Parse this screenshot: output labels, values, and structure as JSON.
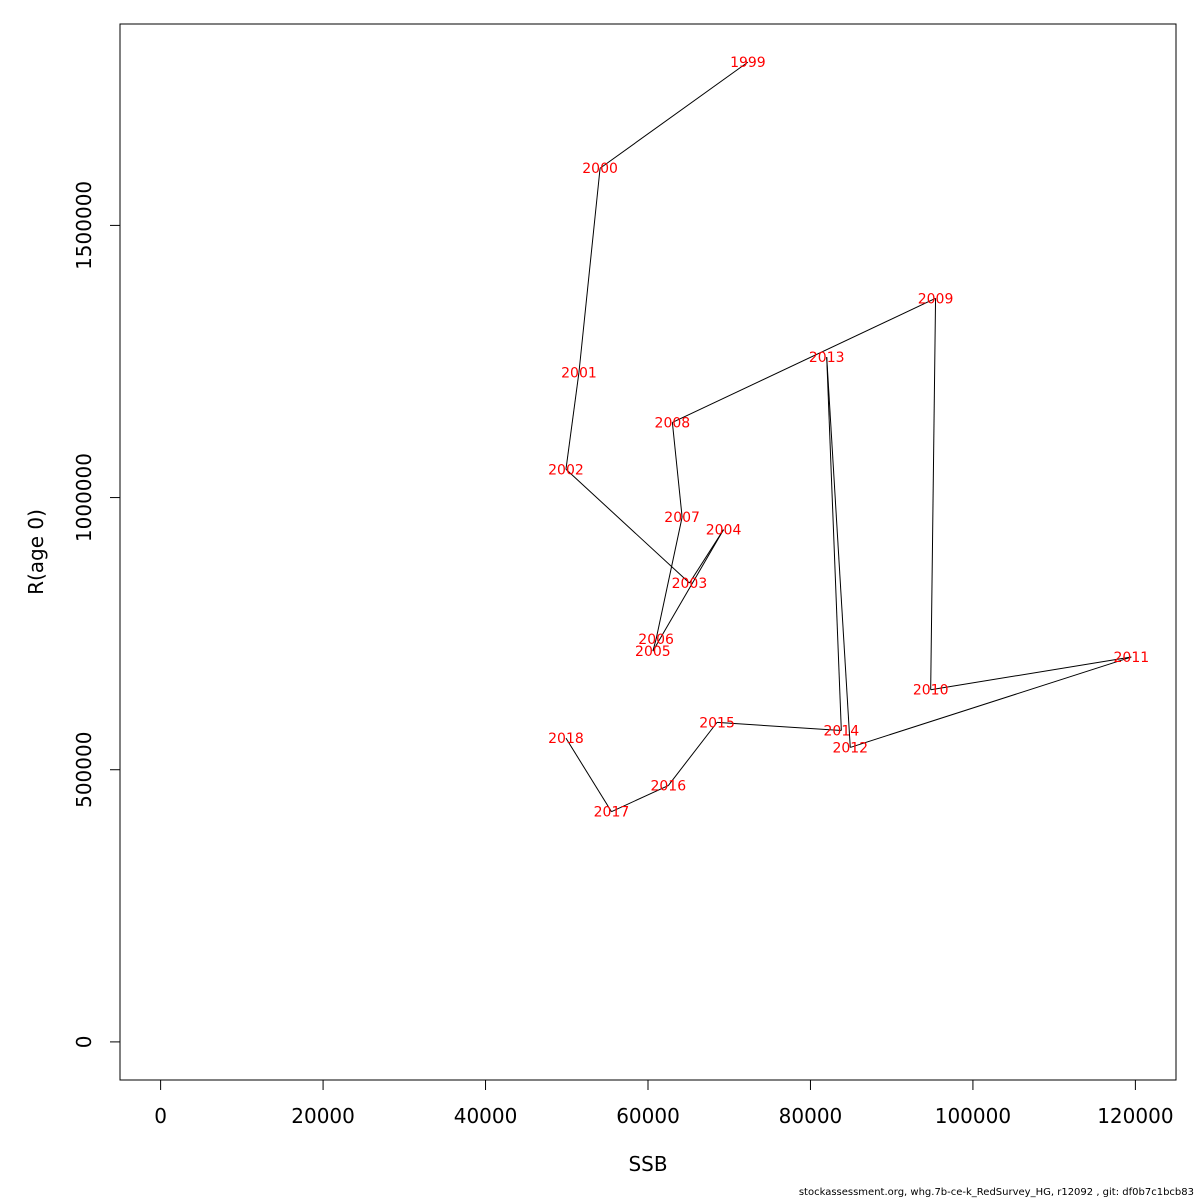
{
  "chart_data": {
    "type": "line",
    "title": "",
    "xlabel": "SSB",
    "ylabel": "R(age 0)",
    "xlim": [
      -5000,
      125000
    ],
    "ylim": [
      -70000,
      1870000
    ],
    "x_ticks": [
      0,
      20000,
      40000,
      60000,
      80000,
      100000,
      120000
    ],
    "x_tick_labels": [
      "0",
      "20000",
      "40000",
      "60000",
      "80000",
      "100000",
      "120000"
    ],
    "y_ticks": [
      0,
      500000,
      1000000,
      1500000
    ],
    "y_tick_labels": [
      "0",
      "500000",
      "1000000",
      "1500000"
    ],
    "grid": false,
    "point_label_color": "#ff0000",
    "line_color": "#000000",
    "series": [
      {
        "points": [
          {
            "label": "1999",
            "x": 72300,
            "y": 1800000
          },
          {
            "label": "2000",
            "x": 54100,
            "y": 1605000
          },
          {
            "label": "2001",
            "x": 51500,
            "y": 1230000
          },
          {
            "label": "2002",
            "x": 49900,
            "y": 1052000
          },
          {
            "label": "2003",
            "x": 65100,
            "y": 843000
          },
          {
            "label": "2004",
            "x": 69300,
            "y": 941000
          },
          {
            "label": "2005",
            "x": 60600,
            "y": 718000
          },
          {
            "label": "2006",
            "x": 61000,
            "y": 740000
          },
          {
            "label": "2007",
            "x": 64200,
            "y": 964000
          },
          {
            "label": "2008",
            "x": 63000,
            "y": 1138000
          },
          {
            "label": "2009",
            "x": 95400,
            "y": 1366000
          },
          {
            "label": "2010",
            "x": 94800,
            "y": 647000
          },
          {
            "label": "2011",
            "x": 119500,
            "y": 707000
          },
          {
            "label": "2012",
            "x": 84900,
            "y": 541000
          },
          {
            "label": "2013",
            "x": 82000,
            "y": 1258000
          },
          {
            "label": "2014",
            "x": 83800,
            "y": 572000
          },
          {
            "label": "2015",
            "x": 68500,
            "y": 587000
          },
          {
            "label": "2016",
            "x": 62500,
            "y": 471000
          },
          {
            "label": "2017",
            "x": 55500,
            "y": 423000
          },
          {
            "label": "2018",
            "x": 49900,
            "y": 558000
          }
        ]
      }
    ]
  },
  "footer_text": "stockassessment.org, whg.7b-ce-k_RedSurvey_HG, r12092 , git: df0b7c1bcb83"
}
